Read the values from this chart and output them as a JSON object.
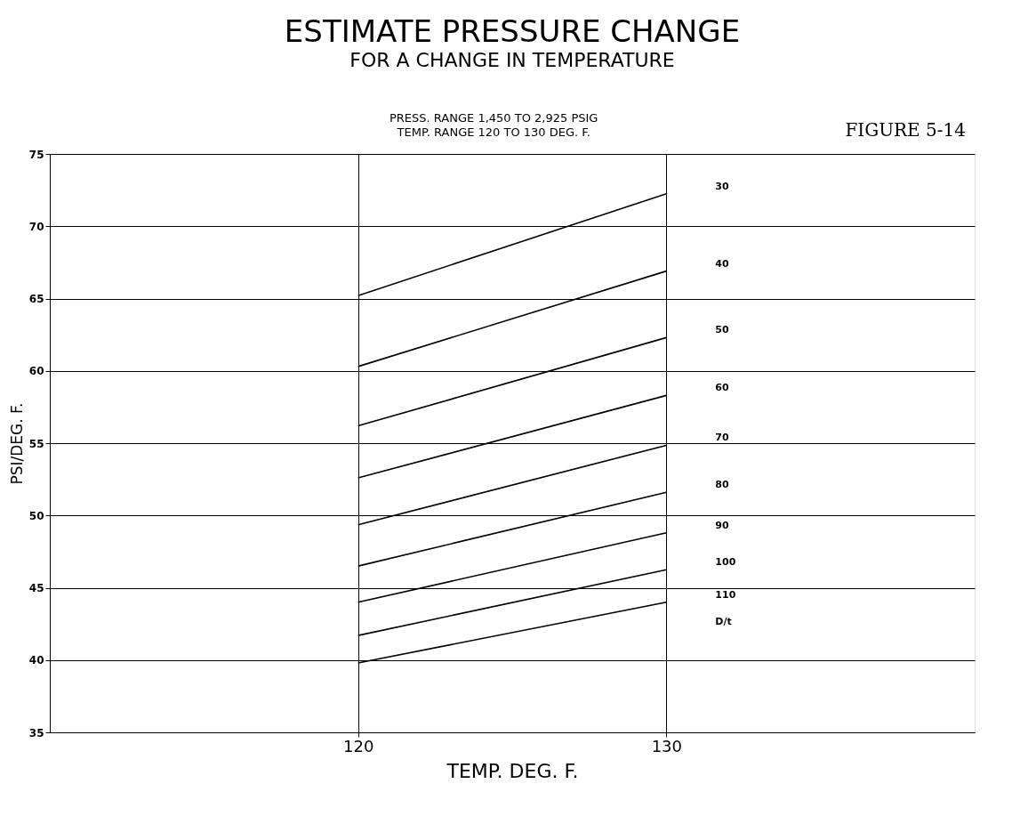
{
  "chart_data": {
    "type": "line",
    "title": "ESTIMATE PRESSURE CHANGE",
    "subtitle": "FOR A CHANGE IN TEMPERATURE",
    "annotations": [
      "PRESS. RANGE 1,450 TO 2,925 PSIG",
      "TEMP. RANGE 120 TO 130 DEG. F.",
      "FIGURE 5-14"
    ],
    "xlabel": "TEMP. DEG. F.",
    "ylabel": "PSI/DEG. F.",
    "legend_title": "D/t",
    "x": [
      120,
      130
    ],
    "series": [
      {
        "name": "30",
        "color": "#000000",
        "values": [
          65.2,
          72.25
        ]
      },
      {
        "name": "40",
        "color": "#000000",
        "values": [
          60.3,
          66.9
        ]
      },
      {
        "name": "50",
        "color": "#000000",
        "values": [
          56.2,
          62.3
        ]
      },
      {
        "name": "60",
        "color": "#000000",
        "values": [
          52.6,
          58.3
        ]
      },
      {
        "name": "70",
        "color": "#000000",
        "values": [
          49.35,
          54.85
        ]
      },
      {
        "name": "80",
        "color": "#000000",
        "values": [
          46.5,
          51.6
        ]
      },
      {
        "name": "90",
        "color": "#000000",
        "values": [
          44.0,
          48.8
        ]
      },
      {
        "name": "100",
        "color": "#000000",
        "values": [
          41.7,
          46.25
        ]
      },
      {
        "name": "110",
        "color": "#000000",
        "values": [
          39.8,
          44.0
        ]
      }
    ],
    "xlim": [
      110,
      140
    ],
    "ylim": [
      35,
      75
    ],
    "xticks": [
      120,
      130
    ],
    "yticks": [
      35,
      40,
      45,
      50,
      55,
      60,
      65,
      70,
      75
    ],
    "grid": true,
    "marker": "none",
    "line_style": "solid",
    "legend": "right"
  }
}
